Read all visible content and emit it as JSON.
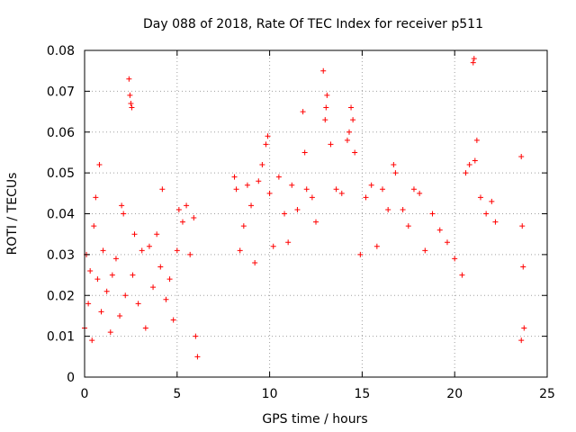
{
  "chart_data": {
    "type": "scatter",
    "title": "Day 088 of 2018, Rate Of TEC Index for receiver p511",
    "xlabel": "GPS time / hours",
    "ylabel": "ROTI / TECUs",
    "xlim": [
      0,
      25
    ],
    "ylim": [
      0,
      0.08
    ],
    "xticks": [
      0,
      5,
      10,
      15,
      20,
      25
    ],
    "xtick_labels": [
      "0",
      "5",
      "10",
      "15",
      "20",
      "25"
    ],
    "yticks": [
      0,
      0.01,
      0.02,
      0.03,
      0.04,
      0.05,
      0.06,
      0.07,
      0.08
    ],
    "ytick_labels": [
      "0",
      "0.01",
      "0.02",
      "0.03",
      "0.04",
      "0.05",
      "0.06",
      "0.07",
      "0.08"
    ],
    "grid": true,
    "marker": "+",
    "color": "#ff0000",
    "series": [
      {
        "name": "ROTI",
        "data_gaps_hours": [
          [
            6.2,
            8.0
          ],
          [
            22.5,
            23.5
          ]
        ],
        "points": [
          [
            0.0,
            0.012
          ],
          [
            0.1,
            0.03
          ],
          [
            0.2,
            0.018
          ],
          [
            0.3,
            0.026
          ],
          [
            0.4,
            0.009
          ],
          [
            0.5,
            0.037
          ],
          [
            0.6,
            0.044
          ],
          [
            0.7,
            0.024
          ],
          [
            0.8,
            0.052
          ],
          [
            0.9,
            0.016
          ],
          [
            1.0,
            0.031
          ],
          [
            1.2,
            0.021
          ],
          [
            1.4,
            0.011
          ],
          [
            1.5,
            0.025
          ],
          [
            1.7,
            0.029
          ],
          [
            1.9,
            0.015
          ],
          [
            2.0,
            0.042
          ],
          [
            2.1,
            0.04
          ],
          [
            2.2,
            0.02
          ],
          [
            2.4,
            0.073
          ],
          [
            2.45,
            0.069
          ],
          [
            2.5,
            0.067
          ],
          [
            2.55,
            0.066
          ],
          [
            2.6,
            0.025
          ],
          [
            2.7,
            0.035
          ],
          [
            2.9,
            0.018
          ],
          [
            3.1,
            0.031
          ],
          [
            3.3,
            0.012
          ],
          [
            3.5,
            0.032
          ],
          [
            3.7,
            0.022
          ],
          [
            3.9,
            0.035
          ],
          [
            4.1,
            0.027
          ],
          [
            4.2,
            0.046
          ],
          [
            4.4,
            0.019
          ],
          [
            4.6,
            0.024
          ],
          [
            4.8,
            0.014
          ],
          [
            5.0,
            0.031
          ],
          [
            5.1,
            0.041
          ],
          [
            5.3,
            0.038
          ],
          [
            5.5,
            0.042
          ],
          [
            5.7,
            0.03
          ],
          [
            5.9,
            0.039
          ],
          [
            6.0,
            0.01
          ],
          [
            6.1,
            0.005
          ],
          [
            8.1,
            0.049
          ],
          [
            8.2,
            0.046
          ],
          [
            8.4,
            0.031
          ],
          [
            8.6,
            0.037
          ],
          [
            8.8,
            0.047
          ],
          [
            9.0,
            0.042
          ],
          [
            9.2,
            0.028
          ],
          [
            9.4,
            0.048
          ],
          [
            9.6,
            0.052
          ],
          [
            9.8,
            0.057
          ],
          [
            9.9,
            0.059
          ],
          [
            10.0,
            0.045
          ],
          [
            10.2,
            0.032
          ],
          [
            10.5,
            0.049
          ],
          [
            10.8,
            0.04
          ],
          [
            11.0,
            0.033
          ],
          [
            11.2,
            0.047
          ],
          [
            11.5,
            0.041
          ],
          [
            11.8,
            0.065
          ],
          [
            11.9,
            0.055
          ],
          [
            12.0,
            0.046
          ],
          [
            12.3,
            0.044
          ],
          [
            12.5,
            0.038
          ],
          [
            12.9,
            0.075
          ],
          [
            13.0,
            0.063
          ],
          [
            13.05,
            0.066
          ],
          [
            13.1,
            0.069
          ],
          [
            13.3,
            0.057
          ],
          [
            13.6,
            0.046
          ],
          [
            13.9,
            0.045
          ],
          [
            14.2,
            0.058
          ],
          [
            14.3,
            0.06
          ],
          [
            14.4,
            0.066
          ],
          [
            14.5,
            0.063
          ],
          [
            14.6,
            0.055
          ],
          [
            14.9,
            0.03
          ],
          [
            15.2,
            0.044
          ],
          [
            15.5,
            0.047
          ],
          [
            15.8,
            0.032
          ],
          [
            16.1,
            0.046
          ],
          [
            16.4,
            0.041
          ],
          [
            16.7,
            0.052
          ],
          [
            16.8,
            0.05
          ],
          [
            17.2,
            0.041
          ],
          [
            17.5,
            0.037
          ],
          [
            17.8,
            0.046
          ],
          [
            18.1,
            0.045
          ],
          [
            18.4,
            0.031
          ],
          [
            18.8,
            0.04
          ],
          [
            19.2,
            0.036
          ],
          [
            19.6,
            0.033
          ],
          [
            20.0,
            0.029
          ],
          [
            20.4,
            0.025
          ],
          [
            20.6,
            0.05
          ],
          [
            20.8,
            0.052
          ],
          [
            21.0,
            0.077
          ],
          [
            21.05,
            0.078
          ],
          [
            21.1,
            0.053
          ],
          [
            21.2,
            0.058
          ],
          [
            21.4,
            0.044
          ],
          [
            21.7,
            0.04
          ],
          [
            22.0,
            0.043
          ],
          [
            22.2,
            0.038
          ],
          [
            23.6,
            0.054
          ],
          [
            23.65,
            0.037
          ],
          [
            23.7,
            0.027
          ],
          [
            23.75,
            0.012
          ],
          [
            23.6,
            0.009
          ]
        ]
      }
    ]
  }
}
